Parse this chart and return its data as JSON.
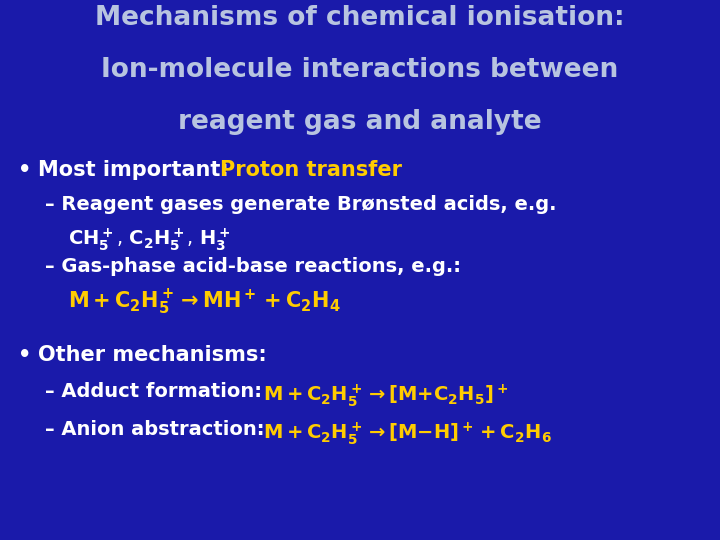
{
  "bg_color": "#1a1aaa",
  "title_color": "#b8c4e0",
  "white_color": "#ffffff",
  "yellow_color": "#ffcc00",
  "title_lines": [
    "Mechanisms of chemical ionisation:",
    "Ion-molecule interactions between",
    "reagent gas and analyte"
  ],
  "title_fontsize": 19,
  "body_fontsize": 15,
  "sub_fontsize": 14
}
